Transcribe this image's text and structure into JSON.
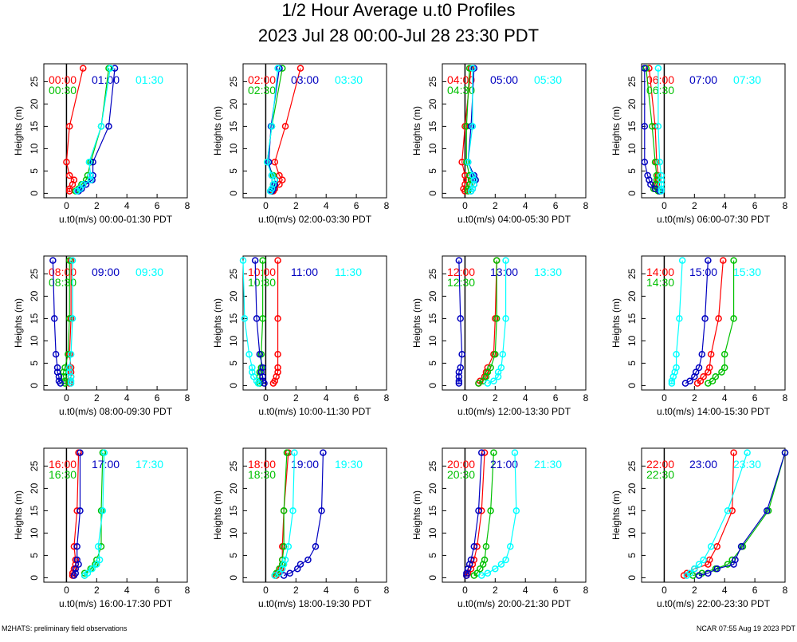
{
  "title": "1/2 Hour Average u.t0 Profiles",
  "subtitle": "2023 Jul 28 00:00-Jul 28 23:30 PDT",
  "footer_left": "M2HATS: preliminary field observations",
  "footer_right": "NCAR 07:55 Aug 19 2023 PDT",
  "chart_data": [
    {
      "type": "line",
      "xlabel": "u.t0(m/s) 00:00-01:30 PDT",
      "ylabel": "Heights (m)",
      "heights": [
        0.5,
        1,
        2,
        3,
        4,
        7,
        15,
        28
      ],
      "xlim": [
        -1.5,
        8
      ],
      "ylim": [
        -1,
        29
      ],
      "xticks": [
        0,
        2,
        4,
        6,
        8
      ],
      "yticks": [
        0,
        5,
        10,
        15,
        20,
        25
      ],
      "series": [
        {
          "name": "00:00",
          "color": "#ff0000",
          "values": [
            0.2,
            0.2,
            0.4,
            0.5,
            0.2,
            0.0,
            0.2,
            1.1
          ]
        },
        {
          "name": "00:30",
          "color": "#00c000",
          "values": [
            0.6,
            0.8,
            1.0,
            1.3,
            1.4,
            1.6,
            2.3,
            2.8
          ]
        },
        {
          "name": "01:00",
          "color": "#0000c0",
          "values": [
            0.8,
            1.0,
            1.3,
            1.7,
            1.75,
            1.75,
            2.8,
            3.2
          ]
        },
        {
          "name": "01:30",
          "color": "#00ffff",
          "values": [
            0.7,
            0.9,
            1.1,
            1.6,
            1.6,
            1.5,
            2.3,
            2.9
          ]
        }
      ]
    },
    {
      "type": "line",
      "xlabel": "u.t0(m/s) 02:00-03:30 PDT",
      "ylabel": "Heights (m)",
      "heights": [
        0.5,
        1,
        2,
        3,
        4,
        7,
        15,
        28
      ],
      "xlim": [
        -1.5,
        8
      ],
      "ylim": [
        -1,
        29
      ],
      "xticks": [
        0,
        2,
        4,
        6,
        8
      ],
      "yticks": [
        0,
        5,
        10,
        15,
        20,
        25
      ],
      "series": [
        {
          "name": "02:00",
          "color": "#ff0000",
          "values": [
            0.5,
            0.6,
            0.9,
            1.1,
            0.9,
            0.6,
            1.3,
            2.3
          ]
        },
        {
          "name": "02:30",
          "color": "#00c000",
          "values": [
            0.4,
            0.4,
            0.5,
            0.6,
            0.5,
            0.1,
            0.4,
            1.1
          ]
        },
        {
          "name": "03:00",
          "color": "#0000c0",
          "values": [
            0.4,
            0.5,
            0.6,
            0.6,
            0.4,
            0.2,
            0.35,
            0.9
          ]
        },
        {
          "name": "03:30",
          "color": "#00ffff",
          "values": [
            0.3,
            0.4,
            0.5,
            0.6,
            0.4,
            0.1,
            0.4,
            0.8
          ]
        }
      ]
    },
    {
      "type": "line",
      "xlabel": "u.t0(m/s) 04:00-05:30 PDT",
      "ylabel": "Heights (m)",
      "heights": [
        0.5,
        1,
        2,
        3,
        4,
        7,
        15,
        28
      ],
      "xlim": [
        -1.5,
        8
      ],
      "ylim": [
        -1,
        29
      ],
      "xticks": [
        0,
        2,
        4,
        6,
        8
      ],
      "yticks": [
        0,
        5,
        10,
        15,
        20,
        25
      ],
      "series": [
        {
          "name": "04:00",
          "color": "#ff0000",
          "values": [
            0.0,
            -0.1,
            0.0,
            0.1,
            0.0,
            -0.2,
            0.0,
            0.4
          ]
        },
        {
          "name": "04:30",
          "color": "#00c000",
          "values": [
            0.2,
            0.2,
            0.3,
            0.4,
            0.3,
            0.1,
            0.1,
            0.3
          ]
        },
        {
          "name": "05:00",
          "color": "#0000c0",
          "values": [
            0.4,
            0.5,
            0.6,
            0.7,
            0.6,
            0.2,
            0.4,
            0.6
          ]
        },
        {
          "name": "05:30",
          "color": "#00ffff",
          "values": [
            0.4,
            0.5,
            0.6,
            0.6,
            0.5,
            0.2,
            0.5,
            0.5
          ]
        }
      ]
    },
    {
      "type": "line",
      "xlabel": "u.t0(m/s) 06:00-07:30 PDT",
      "ylabel": "Heights (m)",
      "heights": [
        0.5,
        1,
        2,
        3,
        4,
        7,
        15,
        28
      ],
      "xlim": [
        -1.5,
        8
      ],
      "ylim": [
        -1,
        29
      ],
      "xticks": [
        0,
        2,
        4,
        6,
        8
      ],
      "yticks": [
        0,
        5,
        10,
        15,
        20,
        25
      ],
      "series": [
        {
          "name": "06:00",
          "color": "#ff0000",
          "values": [
            -0.3,
            -0.6,
            -0.5,
            -0.4,
            -0.4,
            -0.5,
            -0.6,
            -1.0
          ]
        },
        {
          "name": "06:30",
          "color": "#00c000",
          "values": [
            -0.4,
            -0.7,
            -0.6,
            -0.5,
            -0.5,
            -0.6,
            -0.8,
            -1.2
          ]
        },
        {
          "name": "07:00",
          "color": "#0000c0",
          "values": [
            -0.3,
            -0.6,
            -0.9,
            -1.0,
            -1.1,
            -1.3,
            -1.3,
            -1.3
          ]
        },
        {
          "name": "07:30",
          "color": "#00ffff",
          "values": [
            -0.2,
            -0.2,
            -0.2,
            -0.2,
            -0.2,
            -0.3,
            -0.4,
            -0.4
          ]
        }
      ]
    },
    {
      "type": "line",
      "xlabel": "u.t0(m/s) 08:00-09:30 PDT",
      "ylabel": "Heights (m)",
      "heights": [
        0.5,
        1,
        2,
        3,
        4,
        7,
        15,
        28
      ],
      "xlim": [
        -1.5,
        8
      ],
      "ylim": [
        -1,
        29
      ],
      "xticks": [
        0,
        2,
        4,
        6,
        8
      ],
      "yticks": [
        0,
        5,
        10,
        15,
        20,
        25
      ],
      "series": [
        {
          "name": "08:00",
          "color": "#ff0000",
          "values": [
            0.2,
            0.2,
            0.3,
            0.3,
            0.3,
            0.2,
            0.3,
            0.3
          ]
        },
        {
          "name": "08:30",
          "color": "#00c000",
          "values": [
            -0.1,
            -0.1,
            -0.2,
            -0.2,
            -0.1,
            0.1,
            0.2,
            0.2
          ]
        },
        {
          "name": "09:00",
          "color": "#0000c0",
          "values": [
            -0.4,
            -0.5,
            -0.5,
            -0.6,
            -0.6,
            -0.7,
            -0.8,
            -0.9
          ]
        },
        {
          "name": "09:30",
          "color": "#00ffff",
          "values": [
            0.3,
            0.3,
            0.3,
            0.2,
            0.2,
            0.3,
            0.4,
            0.4
          ]
        }
      ]
    },
    {
      "type": "line",
      "xlabel": "u.t0(m/s) 10:00-11:30 PDT",
      "ylabel": "Heights (m)",
      "heights": [
        0.5,
        1,
        2,
        3,
        4,
        7,
        15,
        28
      ],
      "xlim": [
        -1.5,
        8
      ],
      "ylim": [
        -1,
        29
      ],
      "xticks": [
        0,
        2,
        4,
        6,
        8
      ],
      "yticks": [
        0,
        5,
        10,
        15,
        20,
        25
      ],
      "series": [
        {
          "name": "10:00",
          "color": "#ff0000",
          "values": [
            0.5,
            0.6,
            0.7,
            0.8,
            0.8,
            0.8,
            0.8,
            0.8
          ]
        },
        {
          "name": "10:30",
          "color": "#00c000",
          "values": [
            -0.4,
            -0.4,
            -0.4,
            -0.4,
            -0.3,
            -0.3,
            -0.2,
            -0.2
          ]
        },
        {
          "name": "11:00",
          "color": "#0000c0",
          "values": [
            -0.1,
            -0.2,
            -0.2,
            -0.3,
            -0.2,
            -0.4,
            -0.6,
            -0.7
          ]
        },
        {
          "name": "11:30",
          "color": "#00ffff",
          "values": [
            -0.5,
            -0.6,
            -0.8,
            -0.9,
            -0.9,
            -1.1,
            -1.4,
            -1.5
          ]
        }
      ]
    },
    {
      "type": "line",
      "xlabel": "u.t0(m/s) 12:00-13:30 PDT",
      "ylabel": "Heights (m)",
      "heights": [
        0.5,
        1,
        2,
        3,
        4,
        7,
        15,
        28
      ],
      "xlim": [
        -1.5,
        8
      ],
      "ylim": [
        -1,
        29
      ],
      "xticks": [
        0,
        2,
        4,
        6,
        8
      ],
      "yticks": [
        0,
        5,
        10,
        15,
        20,
        25
      ],
      "series": [
        {
          "name": "12:00",
          "color": "#ff0000",
          "values": [
            0.9,
            1.0,
            1.3,
            1.4,
            1.5,
            1.9,
            2.0,
            2.1
          ]
        },
        {
          "name": "12:30",
          "color": "#00c000",
          "values": [
            0.9,
            1.2,
            1.4,
            1.5,
            1.7,
            2.0,
            2.1,
            2.1
          ]
        },
        {
          "name": "13:00",
          "color": "#0000c0",
          "values": [
            -0.4,
            -0.4,
            -0.4,
            -0.4,
            -0.3,
            -0.2,
            -0.3,
            -0.4
          ]
        },
        {
          "name": "13:30",
          "color": "#00ffff",
          "values": [
            1.5,
            1.9,
            2.2,
            2.2,
            2.4,
            2.5,
            2.7,
            2.7
          ]
        }
      ]
    },
    {
      "type": "line",
      "xlabel": "u.t0(m/s) 14:00-15:30 PDT",
      "ylabel": "Heights (m)",
      "heights": [
        0.5,
        1,
        2,
        3,
        4,
        7,
        15,
        28
      ],
      "xlim": [
        -1.5,
        8
      ],
      "ylim": [
        -1,
        29
      ],
      "xticks": [
        0,
        2,
        4,
        6,
        8
      ],
      "yticks": [
        0,
        5,
        10,
        15,
        20,
        25
      ],
      "series": [
        {
          "name": "14:00",
          "color": "#ff0000",
          "values": [
            2.2,
            2.4,
            2.6,
            2.9,
            3.0,
            3.1,
            3.6,
            3.9
          ]
        },
        {
          "name": "14:30",
          "color": "#00c000",
          "values": [
            2.9,
            3.2,
            3.4,
            3.8,
            4.0,
            4.0,
            4.6,
            4.6
          ]
        },
        {
          "name": "15:00",
          "color": "#0000c0",
          "values": [
            1.4,
            1.7,
            2.0,
            2.1,
            2.3,
            2.5,
            2.7,
            2.9
          ]
        },
        {
          "name": "15:30",
          "color": "#00ffff",
          "values": [
            0.5,
            0.5,
            0.6,
            0.7,
            0.8,
            0.8,
            1.0,
            1.2
          ]
        }
      ]
    },
    {
      "type": "line",
      "xlabel": "u.t0(m/s) 16:00-17:30 PDT",
      "ylabel": "Heights (m)",
      "heights": [
        0.5,
        1,
        2,
        3,
        4,
        7,
        15,
        28
      ],
      "xlim": [
        -1.5,
        8
      ],
      "ylim": [
        -1,
        29
      ],
      "xticks": [
        0,
        2,
        4,
        6,
        8
      ],
      "yticks": [
        0,
        5,
        10,
        15,
        20,
        25
      ],
      "series": [
        {
          "name": "16:00",
          "color": "#ff0000",
          "values": [
            0.4,
            0.4,
            0.5,
            0.6,
            0.6,
            0.5,
            0.7,
            0.8
          ]
        },
        {
          "name": "16:30",
          "color": "#00c000",
          "values": [
            1.2,
            1.2,
            1.6,
            1.9,
            2.0,
            2.3,
            2.3,
            2.4
          ]
        },
        {
          "name": "17:00",
          "color": "#0000c0",
          "values": [
            0.5,
            0.6,
            0.6,
            0.8,
            0.7,
            0.7,
            0.9,
            0.9
          ]
        },
        {
          "name": "17:30",
          "color": "#00ffff",
          "values": [
            1.2,
            1.4,
            1.7,
            2.0,
            2.2,
            2.1,
            2.4,
            2.5
          ]
        }
      ]
    },
    {
      "type": "line",
      "xlabel": "u.t0(m/s) 18:00-19:30 PDT",
      "ylabel": "Heights (m)",
      "heights": [
        0.5,
        1,
        2,
        3,
        4,
        7,
        15,
        28
      ],
      "xlim": [
        -1.5,
        8
      ],
      "ylim": [
        -1,
        29
      ],
      "xticks": [
        0,
        2,
        4,
        6,
        8
      ],
      "yticks": [
        0,
        5,
        10,
        15,
        20,
        25
      ],
      "series": [
        {
          "name": "18:00",
          "color": "#ff0000",
          "values": [
            0.7,
            0.8,
            1.0,
            1.1,
            1.1,
            1.1,
            1.2,
            1.5
          ]
        },
        {
          "name": "18:30",
          "color": "#00c000",
          "values": [
            0.6,
            0.7,
            0.9,
            1.1,
            1.1,
            1.2,
            1.2,
            1.4
          ]
        },
        {
          "name": "19:00",
          "color": "#0000c0",
          "values": [
            1.2,
            1.6,
            2.1,
            2.3,
            2.8,
            3.3,
            3.7,
            3.8
          ]
        },
        {
          "name": "19:30",
          "color": "#00ffff",
          "values": [
            0.6,
            0.9,
            1.1,
            1.2,
            1.3,
            1.5,
            1.8,
            1.9
          ]
        }
      ]
    },
    {
      "type": "line",
      "xlabel": "u.t0(m/s) 20:00-21:30 PDT",
      "ylabel": "Heights (m)",
      "heights": [
        0.5,
        1,
        2,
        3,
        4,
        7,
        15,
        28
      ],
      "xlim": [
        -1.5,
        8
      ],
      "ylim": [
        -1,
        29
      ],
      "xticks": [
        0,
        2,
        4,
        6,
        8
      ],
      "yticks": [
        0,
        5,
        10,
        15,
        20,
        25
      ],
      "series": [
        {
          "name": "20:00",
          "color": "#ff0000",
          "values": [
            0.1,
            0.2,
            0.4,
            0.5,
            0.6,
            0.8,
            1.1,
            1.3
          ]
        },
        {
          "name": "20:30",
          "color": "#00c000",
          "values": [
            0.6,
            0.8,
            1.0,
            1.2,
            1.3,
            1.4,
            1.7,
            1.9
          ]
        },
        {
          "name": "21:00",
          "color": "#0000c0",
          "values": [
            0.1,
            0.1,
            0.2,
            0.3,
            0.4,
            0.6,
            0.9,
            1.1
          ]
        },
        {
          "name": "21:30",
          "color": "#00ffff",
          "values": [
            1.1,
            1.5,
            2.0,
            2.4,
            2.7,
            3.0,
            3.4,
            3.3
          ]
        }
      ]
    },
    {
      "type": "line",
      "xlabel": "u.t0(m/s) 22:00-23:30 PDT",
      "ylabel": "Heights (m)",
      "heights": [
        0.5,
        1,
        2,
        3,
        4,
        7,
        15,
        28
      ],
      "xlim": [
        -1.5,
        8
      ],
      "ylim": [
        -1,
        29
      ],
      "xticks": [
        0,
        2,
        4,
        6,
        8
      ],
      "yticks": [
        0,
        5,
        10,
        15,
        20,
        25
      ],
      "series": [
        {
          "name": "22:00",
          "color": "#ff0000",
          "values": [
            1.3,
            1.5,
            2.0,
            2.9,
            3.0,
            3.5,
            4.5,
            4.6
          ]
        },
        {
          "name": "22:30",
          "color": "#00c000",
          "values": [
            1.9,
            2.5,
            3.4,
            4.2,
            4.5,
            5.2,
            6.9,
            8.0
          ]
        },
        {
          "name": "23:00",
          "color": "#0000c0",
          "values": [
            2.3,
            2.9,
            3.5,
            4.6,
            4.7,
            5.1,
            6.8,
            8.0
          ]
        },
        {
          "name": "23:30",
          "color": "#00ffff",
          "values": [
            1.5,
            1.7,
            2.0,
            2.3,
            2.6,
            3.1,
            4.2,
            5.5
          ]
        }
      ]
    }
  ]
}
